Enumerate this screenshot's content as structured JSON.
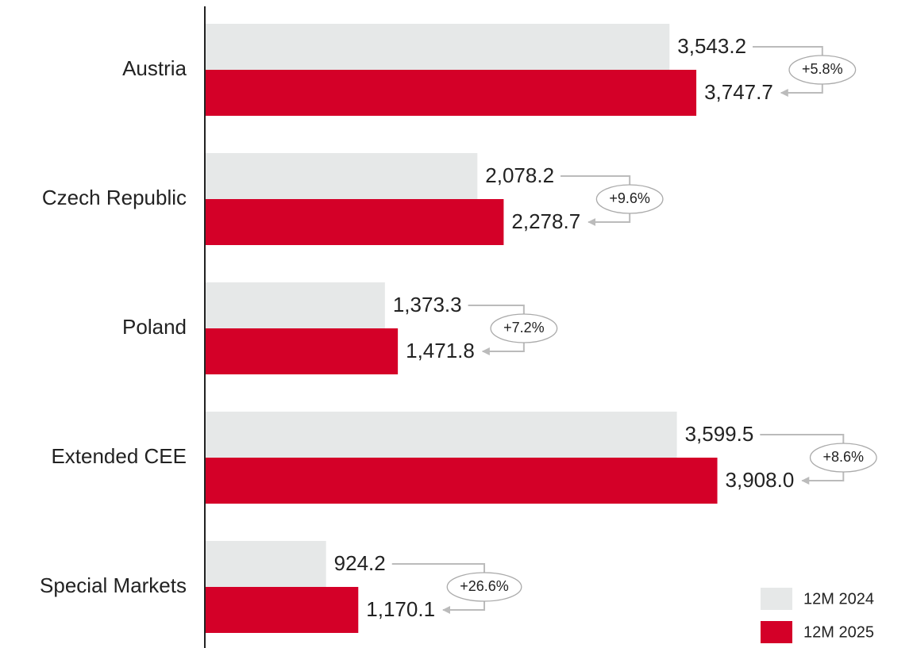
{
  "chart_data": {
    "type": "bar",
    "orientation": "horizontal",
    "categories": [
      "Austria",
      "Czech Republic",
      "Poland",
      "Extended CEE",
      "Special Markets"
    ],
    "series": [
      {
        "name": "12M 2024",
        "color": "#e6e8e8",
        "values": [
          3543.2,
          2078.2,
          1373.3,
          3599.5,
          924.2
        ],
        "value_labels": [
          "3,543.2",
          "2,078.2",
          "1,373.3",
          "3,599.5",
          "924.2"
        ]
      },
      {
        "name": "12M 2025",
        "color": "#d40028",
        "values": [
          3747.7,
          2278.7,
          1471.8,
          3908.0,
          1170.1
        ],
        "value_labels": [
          "3,747.7",
          "2,278.7",
          "1,471.8",
          "3,908.0",
          "1,170.1"
        ]
      }
    ],
    "changes": [
      "+5.8%",
      "+9.6%",
      "+7.2%",
      "+8.6%",
      "+26.6%"
    ],
    "xlim": [
      0,
      5400
    ],
    "legend": "lower right"
  }
}
